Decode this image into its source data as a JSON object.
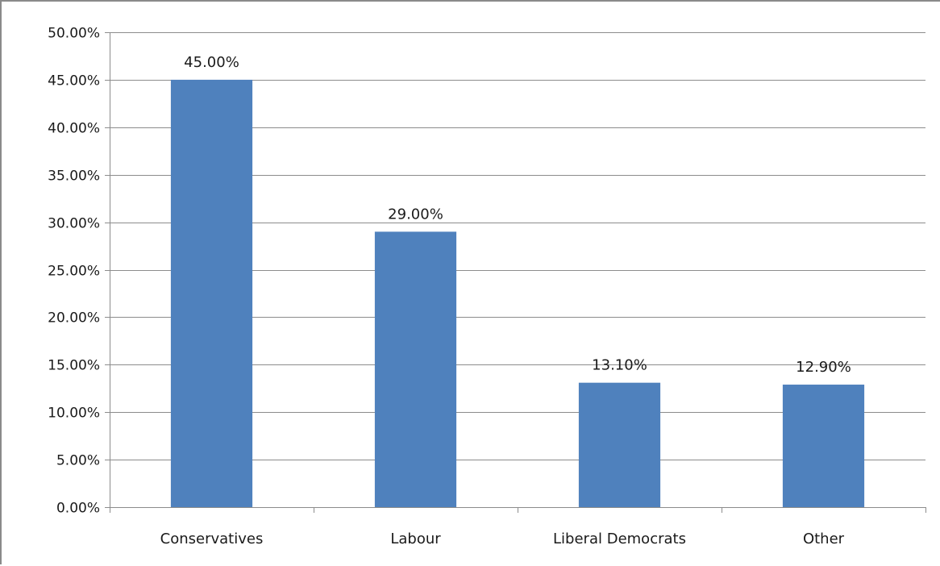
{
  "chart_data": {
    "type": "bar",
    "title": "",
    "xlabel": "",
    "ylabel": "",
    "categories": [
      "Conservatives",
      "Labour",
      "Liberal Democrats",
      "Other"
    ],
    "values": [
      45.0,
      29.0,
      13.1,
      12.9
    ],
    "data_labels": [
      "45.00%",
      "29.00%",
      "13.10%",
      "12.90%"
    ],
    "ylim": [
      0,
      50
    ],
    "y_ticks": [
      0,
      5,
      10,
      15,
      20,
      25,
      30,
      35,
      40,
      45,
      50
    ],
    "y_tick_labels": [
      "0.00%",
      "5.00%",
      "10.00%",
      "15.00%",
      "20.00%",
      "25.00%",
      "30.00%",
      "35.00%",
      "40.00%",
      "45.00%",
      "50.00%"
    ],
    "grid": true,
    "legend": "none",
    "bar_color": "#4f81bd",
    "grid_color": "#8c8c8c",
    "axis_color": "#8c8c8c"
  }
}
